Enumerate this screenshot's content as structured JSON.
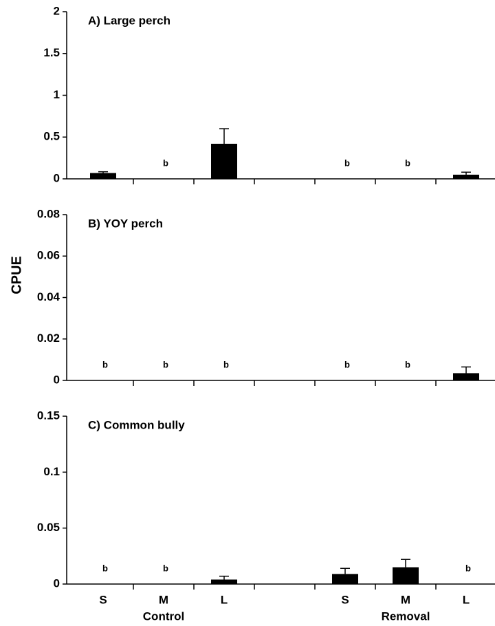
{
  "y_label": "CPUE",
  "groups": [
    "Control",
    "Removal"
  ],
  "chart_data": [
    {
      "type": "bar",
      "title": "A) Large perch",
      "color": "#000000",
      "categories": [
        "S",
        "M",
        "L",
        null,
        "S",
        "M",
        "L"
      ],
      "values": [
        0.07,
        0,
        0.42,
        null,
        0,
        0,
        0.05
      ],
      "errors": [
        0.015,
        null,
        0.18,
        null,
        null,
        null,
        0.03
      ],
      "letters": [
        null,
        "b",
        null,
        null,
        "b",
        "b",
        null
      ],
      "ylim": [
        0,
        2
      ],
      "yticks": [
        0,
        0.5,
        1,
        1.5,
        2
      ]
    },
    {
      "type": "bar",
      "title": "B) YOY perch",
      "color": "#000000",
      "categories": [
        "S",
        "M",
        "L",
        null,
        "S",
        "M",
        "L"
      ],
      "values": [
        0,
        0,
        0,
        null,
        0,
        0,
        0.0035
      ],
      "errors": [
        null,
        null,
        null,
        null,
        null,
        null,
        0.003
      ],
      "letters": [
        "b",
        "b",
        "b",
        null,
        "b",
        "b",
        null
      ],
      "ylim": [
        0,
        0.08
      ],
      "yticks": [
        0,
        0.02,
        0.04,
        0.06,
        0.08
      ]
    },
    {
      "type": "bar",
      "title": "C) Common bully",
      "color": "#000000",
      "categories": [
        "S",
        "M",
        "L",
        null,
        "S",
        "M",
        "L"
      ],
      "values": [
        0,
        0,
        0.004,
        null,
        0.009,
        0.015,
        0
      ],
      "errors": [
        null,
        null,
        0.003,
        null,
        0.005,
        0.007,
        null
      ],
      "letters": [
        "b",
        "b",
        null,
        null,
        null,
        null,
        "b"
      ],
      "ylim": [
        0,
        0.15
      ],
      "yticks": [
        0,
        0.05,
        0.1,
        0.15
      ]
    }
  ]
}
